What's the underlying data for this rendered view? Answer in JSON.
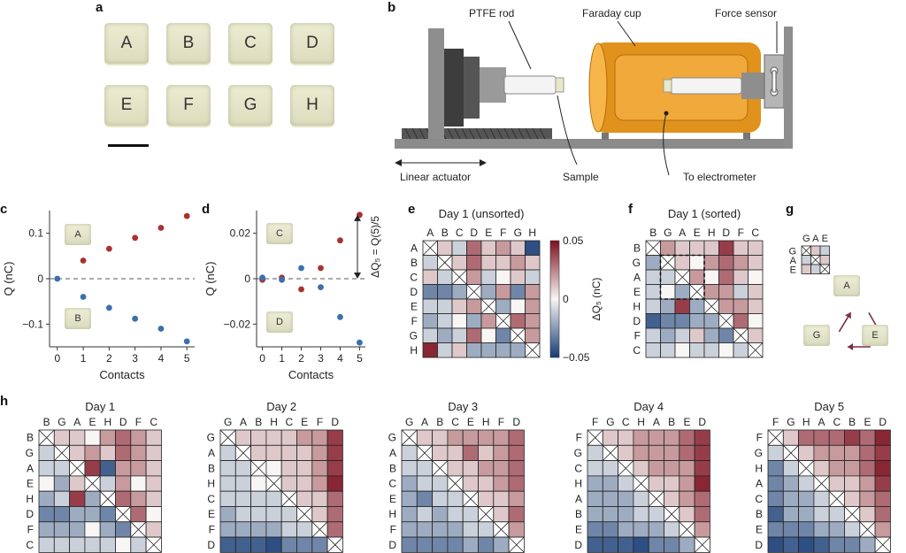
{
  "panels": {
    "a": "a",
    "b": "b",
    "c": "c",
    "d": "d",
    "e": "e",
    "f": "f",
    "g": "g",
    "h": "h"
  },
  "samples": [
    "A",
    "B",
    "C",
    "D",
    "E",
    "F",
    "G",
    "H"
  ],
  "apparatus": {
    "ptfe_rod": "PTFE rod",
    "faraday_cup": "Faraday cup",
    "force_sensor": "Force sensor",
    "linear_actuator": "Linear actuator",
    "sample": "Sample",
    "to_electrometer": "To electrometer"
  },
  "chart_data": [
    {
      "panel": "c",
      "type": "scatter",
      "xlabel": "Contacts",
      "ylabel": "Q (nC)",
      "xlim": [
        -0.3,
        5.3
      ],
      "ylim": [
        -0.15,
        0.15
      ],
      "xticks": [
        "0",
        "1",
        "2",
        "3",
        "4",
        "5"
      ],
      "yticks": [
        "0.1",
        "0",
        "−0.1"
      ],
      "inset_labels": [
        "A",
        "B"
      ],
      "series": [
        {
          "color": "#a8322f",
          "x": [
            1,
            2,
            3,
            4,
            5
          ],
          "y": [
            0.04,
            0.066,
            0.09,
            0.112,
            0.138
          ]
        },
        {
          "color": "#3b6fad",
          "x": [
            0,
            1,
            2,
            3,
            4,
            5
          ],
          "y": [
            0,
            -0.04,
            -0.064,
            -0.088,
            -0.11,
            -0.138
          ]
        }
      ]
    },
    {
      "panel": "d",
      "type": "scatter",
      "xlabel": "Contacts",
      "ylabel": "Q (nC)",
      "annotation": "ΔQ₅ = Q(5)/5",
      "xlim": [
        -0.3,
        5.3
      ],
      "ylim": [
        -0.032,
        0.032
      ],
      "xticks": [
        "0",
        "1",
        "2",
        "3",
        "4",
        "5"
      ],
      "yticks": [
        "0.02",
        "0",
        "−0.02"
      ],
      "inset_labels": [
        "C",
        "D"
      ],
      "series": [
        {
          "color": "#a8322f",
          "x": [
            0,
            1,
            2,
            3,
            4,
            5
          ],
          "y": [
            -0.0005,
            0.0005,
            -0.005,
            0.005,
            0.018,
            0.03
          ]
        },
        {
          "color": "#3b6fad",
          "x": [
            0,
            1,
            2,
            3,
            4,
            5
          ],
          "y": [
            0.0005,
            -0.0005,
            0.005,
            -0.004,
            -0.018,
            -0.03
          ]
        }
      ]
    },
    {
      "panel": "e",
      "type": "heatmap",
      "title": "Day 1 (unsorted)",
      "labels": [
        "A",
        "B",
        "C",
        "D",
        "E",
        "F",
        "G",
        "H"
      ],
      "colorbar": {
        "label": "ΔQ₅ (nC)",
        "ticks": [
          "0.05",
          "0",
          "−0.05"
        ],
        "range": [
          -0.05,
          0.05
        ]
      },
      "values": [
        [
          null,
          0.01,
          -0.01,
          0.03,
          0.01,
          0.02,
          0.01,
          -0.045
        ],
        [
          -0.01,
          null,
          0.01,
          0.03,
          0.01,
          0.01,
          0.02,
          0.01
        ],
        [
          0.01,
          -0.01,
          null,
          0.02,
          -0.01,
          0.0,
          0.01,
          -0.01
        ],
        [
          -0.03,
          -0.03,
          -0.02,
          null,
          -0.02,
          0.02,
          -0.03,
          0.02
        ],
        [
          -0.01,
          -0.01,
          0.01,
          0.02,
          null,
          -0.02,
          0.0,
          0.02
        ],
        [
          -0.02,
          -0.01,
          0.0,
          -0.02,
          0.02,
          null,
          0.03,
          0.02
        ],
        [
          -0.01,
          -0.02,
          -0.01,
          0.03,
          0.0,
          -0.03,
          null,
          0.02
        ],
        [
          0.045,
          -0.01,
          0.01,
          -0.02,
          -0.02,
          -0.02,
          -0.02,
          null
        ]
      ]
    },
    {
      "panel": "f",
      "type": "heatmap",
      "title": "Day 1 (sorted)",
      "labels": [
        "B",
        "G",
        "A",
        "E",
        "H",
        "D",
        "F",
        "C"
      ],
      "values": [
        [
          null,
          0.02,
          0.01,
          0.01,
          0.01,
          0.04,
          0.01,
          0.01
        ],
        [
          -0.02,
          null,
          0.01,
          0.0,
          0.02,
          0.03,
          0.02,
          0.01
        ],
        [
          -0.01,
          -0.01,
          null,
          0.02,
          0.0,
          0.03,
          0.01,
          0.0
        ],
        [
          -0.01,
          0.0,
          -0.02,
          null,
          0.02,
          0.02,
          -0.01,
          0.01
        ],
        [
          -0.01,
          -0.02,
          0.04,
          -0.02,
          null,
          0.02,
          0.02,
          0.01
        ],
        [
          -0.04,
          -0.03,
          -0.03,
          -0.02,
          -0.02,
          null,
          0.03,
          0.0
        ],
        [
          -0.01,
          -0.02,
          -0.01,
          0.01,
          -0.02,
          -0.03,
          null,
          0.01
        ],
        [
          -0.01,
          -0.01,
          0.0,
          -0.01,
          -0.01,
          0.0,
          -0.01,
          null
        ]
      ]
    },
    {
      "panel": "g",
      "type": "heatmap",
      "labels": [
        "G",
        "A",
        "E"
      ],
      "cycle": [
        "A",
        "E",
        "G"
      ],
      "values": [
        [
          null,
          0.01,
          -0.01
        ],
        [
          -0.01,
          null,
          0.01
        ],
        [
          0.01,
          -0.01,
          null
        ]
      ]
    },
    {
      "panel": "h",
      "type": "heatmap",
      "title": "Day 1",
      "labels": [
        "B",
        "G",
        "A",
        "E",
        "H",
        "D",
        "F",
        "C"
      ],
      "values": [
        [
          null,
          0.01,
          0.01,
          0.0,
          0.02,
          0.03,
          0.02,
          0.01
        ],
        [
          -0.01,
          null,
          0.01,
          0.02,
          0.01,
          0.03,
          0.02,
          0.01
        ],
        [
          -0.01,
          -0.01,
          null,
          0.04,
          -0.04,
          0.02,
          0.02,
          0.01
        ],
        [
          0.0,
          -0.02,
          0.01,
          null,
          -0.01,
          0.02,
          0.0,
          0.01
        ],
        [
          -0.02,
          -0.01,
          0.04,
          -0.02,
          null,
          0.03,
          0.02,
          0.01
        ],
        [
          -0.03,
          -0.03,
          -0.02,
          -0.02,
          -0.03,
          null,
          0.03,
          0.0
        ],
        [
          -0.02,
          -0.02,
          -0.02,
          0.0,
          -0.02,
          -0.03,
          null,
          0.01
        ],
        [
          -0.01,
          -0.01,
          -0.01,
          -0.01,
          -0.01,
          0.0,
          -0.01,
          null
        ]
      ]
    },
    {
      "panel": "h",
      "type": "heatmap",
      "title": "Day 2",
      "labels": [
        "G",
        "A",
        "B",
        "H",
        "C",
        "E",
        "F",
        "D"
      ],
      "values": [
        [
          null,
          0.01,
          0.01,
          0.01,
          0.01,
          0.02,
          0.02,
          0.04
        ],
        [
          -0.01,
          null,
          0.01,
          0.01,
          0.01,
          0.01,
          0.02,
          0.04
        ],
        [
          -0.01,
          -0.01,
          null,
          0.0,
          0.01,
          0.01,
          0.02,
          0.04
        ],
        [
          -0.01,
          -0.01,
          0.0,
          null,
          0.01,
          0.01,
          0.02,
          0.045
        ],
        [
          -0.01,
          -0.01,
          -0.01,
          -0.01,
          null,
          0.01,
          0.01,
          0.03
        ],
        [
          -0.02,
          -0.01,
          -0.01,
          -0.01,
          -0.01,
          null,
          0.01,
          0.03
        ],
        [
          -0.02,
          -0.02,
          -0.02,
          -0.02,
          -0.01,
          -0.01,
          null,
          0.03
        ],
        [
          -0.04,
          -0.04,
          -0.04,
          -0.045,
          -0.03,
          -0.03,
          -0.03,
          null
        ]
      ]
    },
    {
      "panel": "h",
      "type": "heatmap",
      "title": "Day 3",
      "labels": [
        "G",
        "A",
        "B",
        "C",
        "E",
        "H",
        "F",
        "D"
      ],
      "values": [
        [
          null,
          0.01,
          0.01,
          0.02,
          0.02,
          0.02,
          0.02,
          0.03
        ],
        [
          -0.01,
          null,
          0.01,
          0.01,
          0.03,
          0.01,
          0.02,
          0.03
        ],
        [
          -0.01,
          -0.01,
          null,
          0.01,
          0.01,
          0.02,
          0.02,
          0.03
        ],
        [
          -0.02,
          -0.01,
          -0.01,
          null,
          0.01,
          0.01,
          0.02,
          0.03
        ],
        [
          -0.02,
          -0.03,
          -0.01,
          -0.01,
          null,
          0.01,
          0.01,
          0.02
        ],
        [
          -0.02,
          -0.01,
          -0.02,
          -0.01,
          -0.01,
          null,
          0.01,
          0.03
        ],
        [
          -0.02,
          -0.02,
          -0.02,
          -0.02,
          -0.01,
          -0.01,
          null,
          0.02
        ],
        [
          -0.03,
          -0.03,
          -0.03,
          -0.03,
          -0.02,
          -0.03,
          -0.02,
          null
        ]
      ]
    },
    {
      "panel": "h",
      "type": "heatmap",
      "title": "Day 4",
      "labels": [
        "F",
        "G",
        "C",
        "H",
        "A",
        "B",
        "E",
        "D"
      ],
      "values": [
        [
          null,
          0.01,
          0.01,
          0.02,
          0.02,
          0.02,
          0.03,
          0.04
        ],
        [
          -0.01,
          null,
          0.01,
          0.02,
          0.02,
          0.02,
          0.03,
          0.04
        ],
        [
          -0.01,
          -0.01,
          null,
          0.01,
          0.02,
          0.02,
          0.02,
          0.04
        ],
        [
          -0.02,
          -0.02,
          -0.01,
          null,
          0.01,
          0.01,
          0.02,
          0.045
        ],
        [
          -0.02,
          -0.02,
          -0.02,
          -0.01,
          null,
          0.01,
          0.02,
          0.03
        ],
        [
          -0.02,
          -0.02,
          -0.02,
          -0.01,
          -0.01,
          null,
          0.01,
          0.03
        ],
        [
          -0.03,
          -0.03,
          -0.02,
          -0.02,
          -0.02,
          -0.01,
          null,
          0.02
        ],
        [
          -0.04,
          -0.04,
          -0.04,
          -0.045,
          -0.03,
          -0.03,
          -0.02,
          null
        ]
      ]
    },
    {
      "panel": "h",
      "type": "heatmap",
      "title": "Day 5",
      "labels": [
        "F",
        "G",
        "H",
        "A",
        "C",
        "B",
        "E",
        "D"
      ],
      "values": [
        [
          null,
          0.01,
          0.03,
          0.03,
          0.03,
          0.04,
          0.03,
          0.045
        ],
        [
          -0.01,
          null,
          0.01,
          0.02,
          0.02,
          0.02,
          0.03,
          0.04
        ],
        [
          -0.03,
          -0.01,
          null,
          0.01,
          0.02,
          0.02,
          0.03,
          0.045
        ],
        [
          -0.03,
          -0.02,
          -0.01,
          null,
          0.01,
          0.01,
          0.02,
          0.04
        ],
        [
          -0.03,
          -0.02,
          -0.02,
          -0.01,
          null,
          0.01,
          0.02,
          0.03
        ],
        [
          -0.04,
          -0.02,
          -0.02,
          -0.01,
          -0.01,
          null,
          0.01,
          0.03
        ],
        [
          -0.03,
          -0.03,
          -0.03,
          -0.02,
          -0.02,
          -0.01,
          null,
          0.02
        ],
        [
          -0.045,
          -0.04,
          -0.045,
          -0.04,
          -0.03,
          -0.03,
          -0.02,
          null
        ]
      ]
    }
  ]
}
